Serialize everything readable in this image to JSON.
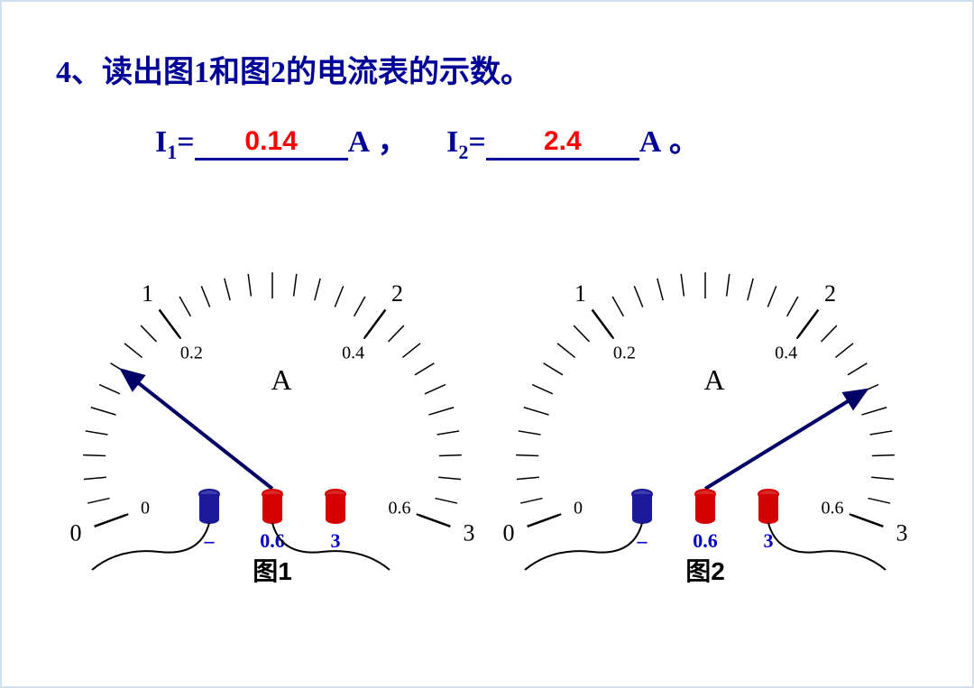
{
  "question": {
    "number": "4、",
    "text": "读出图1和图2的电流表的示数。",
    "text_color": "#000099",
    "fontsize": 34
  },
  "answers": {
    "i1_label": "I",
    "i1_sub": "1",
    "i1_value": "0.14",
    "i2_label": "I",
    "i2_sub": "2",
    "i2_value": "2.4",
    "unit": "A",
    "comma": "，",
    "period": "。",
    "equals": "=",
    "answer_color": "#ff0000",
    "label_color": "#000099"
  },
  "gauge_common": {
    "outer_scale": {
      "labels": [
        "0",
        "1",
        "2",
        "3"
      ],
      "major_values": [
        0,
        1,
        2,
        3
      ],
      "minor_step": 0.1,
      "range": [
        0,
        3
      ]
    },
    "inner_scale": {
      "labels": [
        "0",
        "0.2",
        "0.4",
        "0.6"
      ],
      "major_values": [
        0,
        0.2,
        0.4,
        0.6
      ],
      "range": [
        0,
        0.6
      ]
    },
    "unit_label": "A",
    "arc_start_angle_deg": 200,
    "arc_end_angle_deg": -20,
    "tick_color": "#000000",
    "needle_color": "#000066",
    "label_color": "#000000",
    "label_fontsize": 26,
    "inner_label_fontsize": 20,
    "unit_fontsize": 32
  },
  "gauge1": {
    "caption": "图1",
    "needle_value_outer": 0.7,
    "terminals": [
      {
        "label": "–",
        "color": "#1a1a99",
        "wired": true
      },
      {
        "label": "0.6",
        "color": "#d40000",
        "wired": true
      },
      {
        "label": "3",
        "color": "#d40000",
        "wired": false
      }
    ],
    "terminal_label_color": "#0000cc"
  },
  "gauge2": {
    "caption": "图2",
    "needle_value_outer": 2.4,
    "terminals": [
      {
        "label": "–",
        "color": "#1a1a99",
        "wired": true
      },
      {
        "label": "0.6",
        "color": "#d40000",
        "wired": false
      },
      {
        "label": "3",
        "color": "#d40000",
        "wired": true
      }
    ],
    "terminal_label_color": "#0000cc"
  }
}
